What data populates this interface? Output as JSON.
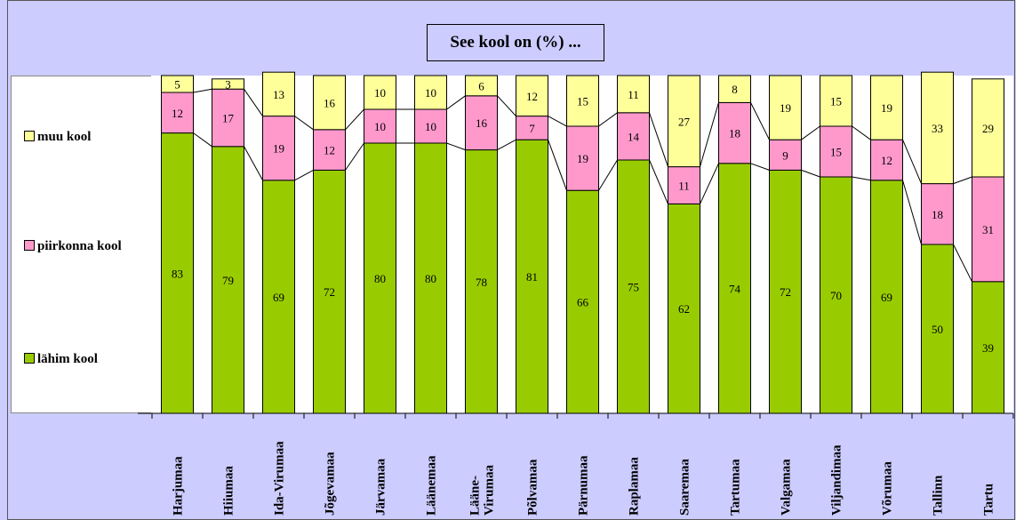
{
  "chart_data": {
    "type": "bar",
    "stacked": true,
    "title": "See kool on (%) ...",
    "categories": [
      "Harjumaa",
      "Hiiumaa",
      "Ida-Virumaa",
      "Jõgevamaa",
      "Järvamaa",
      "Läänemaa",
      "Lääne-Virumaa",
      "Põlvamaa",
      "Pärnumaa",
      "Raplamaa",
      "Saaremaa",
      "Tartumaa",
      "Valgamaa",
      "Viljandimaa",
      "Võrumaa",
      "Tallinn",
      "Tartu"
    ],
    "category_display": [
      "Harjumaa",
      "Hiiumaa",
      "Ida-Virumaa",
      "Jõgevamaa",
      "Järvamaa",
      "Läänemaa",
      "Lääne-\nVirumaa",
      "Põlvamaa",
      "Pärnumaa",
      "Raplamaa",
      "Saaremaa",
      "Tartumaa",
      "Valgamaa",
      "Viljandimaa",
      "Võrumaa",
      "Tallinn",
      "Tartu"
    ],
    "series": [
      {
        "name": "lähim kool",
        "color": "#99cc00",
        "values": [
          83,
          79,
          69,
          72,
          80,
          80,
          78,
          81,
          66,
          75,
          62,
          74,
          72,
          70,
          69,
          50,
          39
        ]
      },
      {
        "name": "piirkonna kool",
        "color": "#ff99cc",
        "values": [
          12,
          17,
          19,
          12,
          10,
          10,
          16,
          7,
          19,
          14,
          11,
          18,
          9,
          15,
          12,
          18,
          31
        ]
      },
      {
        "name": "muu kool",
        "color": "#ffff99",
        "values": [
          5,
          3,
          13,
          16,
          10,
          10,
          6,
          12,
          15,
          11,
          27,
          8,
          19,
          15,
          19,
          33,
          29
        ]
      }
    ],
    "ylim": [
      0,
      100
    ],
    "legend_position": "left",
    "legend_order": [
      "muu kool",
      "piirkonna kool",
      "lähim kool"
    ]
  }
}
